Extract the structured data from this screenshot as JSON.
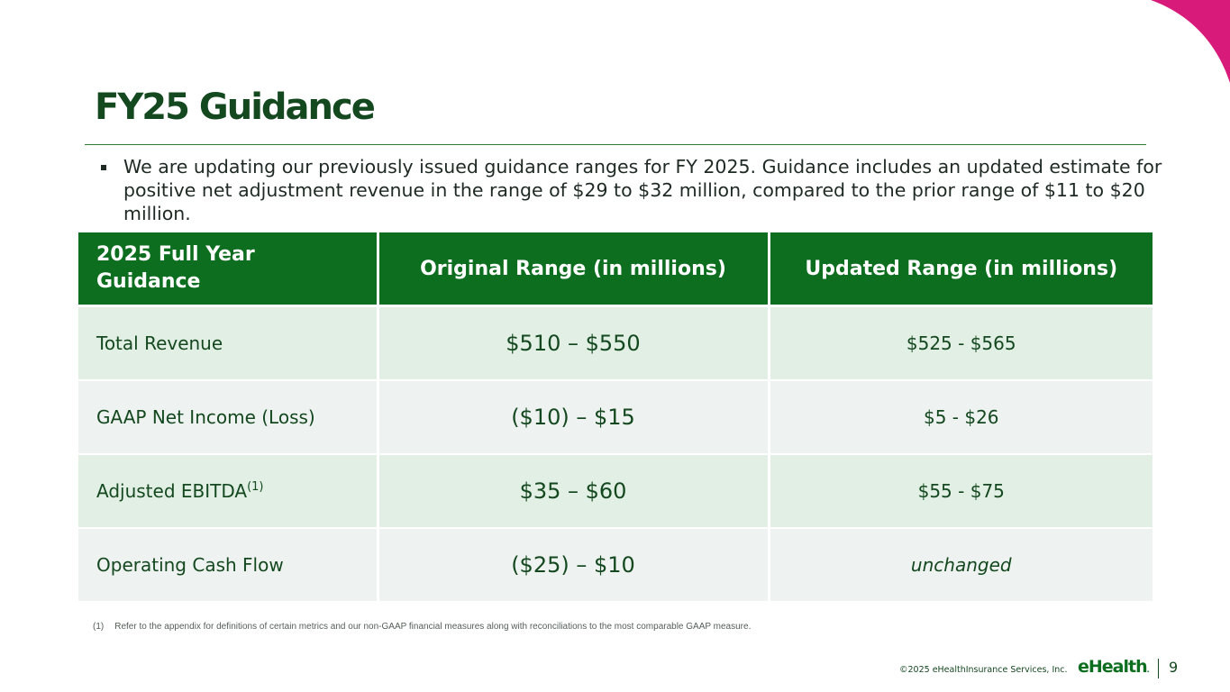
{
  "slide": {
    "title": "FY25 Guidance",
    "bullet": "We are updating our previously issued guidance ranges for FY 2025. Guidance includes an updated estimate for positive net adjustment revenue in the range of $29 to $32 million, compared to the prior range of $11 to $20 million."
  },
  "table": {
    "headers": [
      "2025 Full Year Guidance",
      "Original Range (in millions)",
      "Updated Range (in millions)"
    ],
    "rows": [
      {
        "metric": "Total Revenue",
        "note": "",
        "original": "$510 – $550",
        "updated": "$525 - $565"
      },
      {
        "metric": "GAAP Net Income (Loss)",
        "note": "",
        "original": "($10) – $15",
        "updated": "$5 - $26"
      },
      {
        "metric": "Adjusted EBITDA",
        "note": "(1)",
        "original": "$35 – $60",
        "updated": "$55 - $75"
      },
      {
        "metric": "Operating Cash Flow",
        "note": "",
        "original": "($25) – $10",
        "updated": "unchanged"
      }
    ]
  },
  "footnote": {
    "number": "(1)",
    "text": "Refer to the appendix for definitions of certain metrics and our non-GAAP financial measures along with reconciliations to the most comparable GAAP measure."
  },
  "footer": {
    "copyright": "©2025 eHealthInsurance Services, Inc.",
    "logo": "eHealth",
    "logo_mark": ".",
    "page_number": "9"
  },
  "colors": {
    "accent_magenta": "#d81b7a",
    "header_green": "#0d6e1f",
    "title_green": "#14481f",
    "row_green": "#e2efe4",
    "row_grey": "#eef2f1"
  }
}
